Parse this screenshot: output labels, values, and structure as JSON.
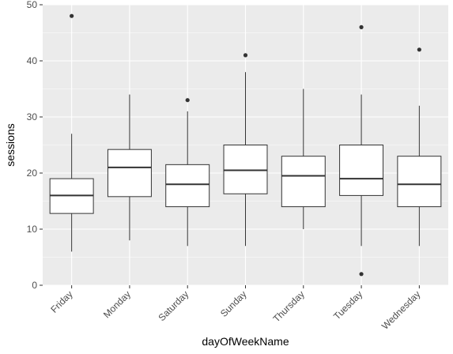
{
  "chart_data": {
    "type": "boxplot",
    "title": "",
    "xlabel": "dayOfWeekName",
    "ylabel": "sessions",
    "ylim": [
      0,
      50
    ],
    "y_ticks": [
      0,
      10,
      20,
      30,
      40,
      50
    ],
    "grid": true,
    "legend": "none",
    "colors": {
      "panel": "#ebebeb",
      "grid_major": "#ffffff",
      "box_fill": "#ffffff",
      "box_line": "#333333",
      "outlier": "#333333",
      "tick_text": "#4d4d4d"
    },
    "categories": [
      "Friday",
      "Monday",
      "Saturday",
      "Sunday",
      "Thursday",
      "Tuesday",
      "Wednesday"
    ],
    "boxes": [
      {
        "category": "Friday",
        "min": 6,
        "q1": 12.8,
        "median": 16,
        "q3": 19,
        "max": 27,
        "outliers": [
          48
        ]
      },
      {
        "category": "Monday",
        "min": 8,
        "q1": 15.8,
        "median": 21,
        "q3": 24.2,
        "max": 34,
        "outliers": []
      },
      {
        "category": "Saturday",
        "min": 7,
        "q1": 14,
        "median": 18,
        "q3": 21.5,
        "max": 31,
        "outliers": [
          33
        ]
      },
      {
        "category": "Sunday",
        "min": 7,
        "q1": 16.3,
        "median": 20.5,
        "q3": 25,
        "max": 38,
        "outliers": [
          41
        ]
      },
      {
        "category": "Thursday",
        "min": 10,
        "q1": 14,
        "median": 19.5,
        "q3": 23,
        "max": 35,
        "outliers": []
      },
      {
        "category": "Tuesday",
        "min": 7,
        "q1": 16,
        "median": 19,
        "q3": 25,
        "max": 34,
        "outliers": [
          46,
          2
        ]
      },
      {
        "category": "Wednesday",
        "min": 7,
        "q1": 14,
        "median": 18,
        "q3": 23,
        "max": 32,
        "outliers": [
          42
        ]
      }
    ]
  }
}
